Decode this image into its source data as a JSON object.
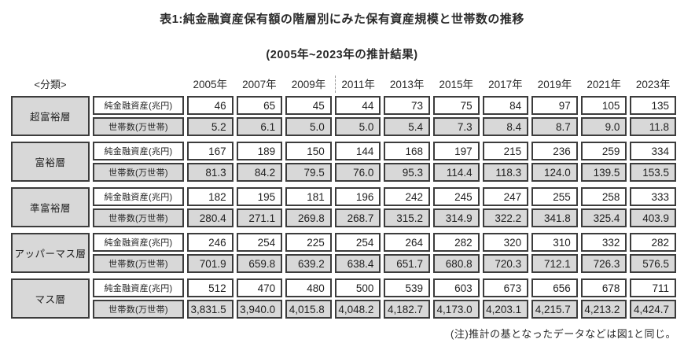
{
  "title": "表1:純金融資産保有額の階層別にみた保有資産規模と世帯数の推移",
  "subtitle": "(2005年~2023年の推計結果)",
  "note": "(注)推計の基となったデータなどは図1と同じ。",
  "colors": {
    "cell_border": "#3c3c3c",
    "shaded_cell_bg": "#d8d8d8",
    "page_bg": "#ffffff",
    "text": "#1f1f1f"
  },
  "table": {
    "corner_label": "<分類>",
    "years": [
      "2005年",
      "2007年",
      "2009年",
      "2011年",
      "2013年",
      "2015年",
      "2017年",
      "2019年",
      "2021年",
      "2023年"
    ],
    "row_labels": {
      "assets": "純金融資産(兆円)",
      "households": "世帯数(万世帯)"
    },
    "groups": [
      {
        "tier": "超富裕層",
        "assets": [
          "46",
          "65",
          "45",
          "44",
          "73",
          "75",
          "84",
          "97",
          "105",
          "135"
        ],
        "households": [
          "5.2",
          "6.1",
          "5.0",
          "5.0",
          "5.4",
          "7.3",
          "8.4",
          "8.7",
          "9.0",
          "11.8"
        ]
      },
      {
        "tier": "富裕層",
        "assets": [
          "167",
          "189",
          "150",
          "144",
          "168",
          "197",
          "215",
          "236",
          "259",
          "334"
        ],
        "households": [
          "81.3",
          "84.2",
          "79.5",
          "76.0",
          "95.3",
          "114.4",
          "118.3",
          "124.0",
          "139.5",
          "153.5"
        ]
      },
      {
        "tier": "準富裕層",
        "assets": [
          "182",
          "195",
          "181",
          "196",
          "242",
          "245",
          "247",
          "255",
          "258",
          "333"
        ],
        "households": [
          "280.4",
          "271.1",
          "269.8",
          "268.7",
          "315.2",
          "314.9",
          "322.2",
          "341.8",
          "325.4",
          "403.9"
        ]
      },
      {
        "tier": "アッパーマス層",
        "assets": [
          "246",
          "254",
          "225",
          "254",
          "264",
          "282",
          "320",
          "310",
          "332",
          "282"
        ],
        "households": [
          "701.9",
          "659.8",
          "639.2",
          "638.4",
          "651.7",
          "680.8",
          "720.3",
          "712.1",
          "726.3",
          "576.5"
        ]
      },
      {
        "tier": "マス層",
        "assets": [
          "512",
          "470",
          "480",
          "500",
          "539",
          "603",
          "673",
          "656",
          "678",
          "711"
        ],
        "households": [
          "3,831.5",
          "3,940.0",
          "4,015.8",
          "4,048.2",
          "4,182.7",
          "4,173.0",
          "4,203.1",
          "4,215.7",
          "4,213.2",
          "4,424.7"
        ]
      }
    ]
  }
}
